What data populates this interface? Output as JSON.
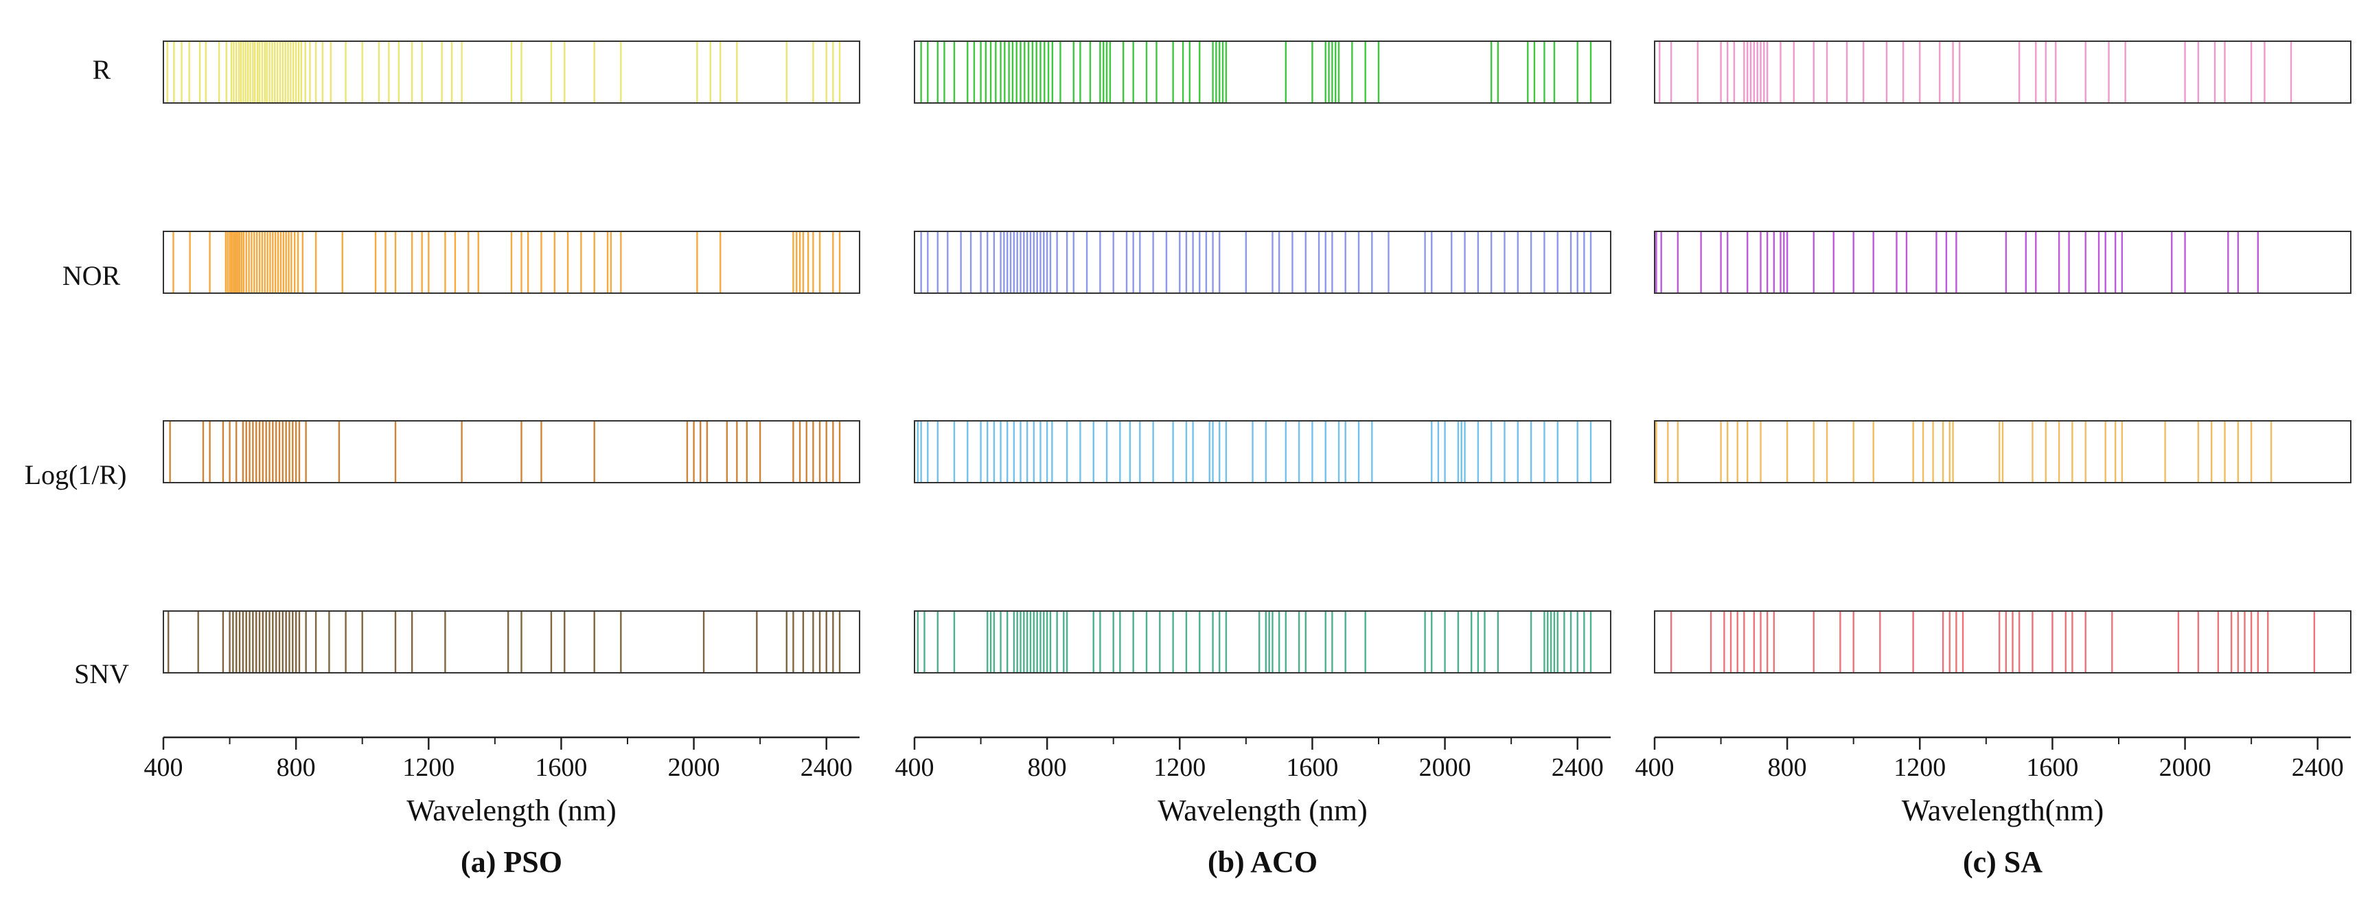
{
  "chart_data": {
    "type": "strip",
    "x_label_unit": "nm",
    "xlim": [
      400,
      2500
    ],
    "x_ticks": [
      400,
      800,
      1200,
      1600,
      2000,
      2400
    ],
    "row_labels": [
      "R",
      "NOR",
      "Log(1/R)",
      "SNV"
    ],
    "panels": [
      {
        "caption": "(a) PSO",
        "xlabel": "Wavelength (nm)",
        "rows": [
          {
            "label": "R",
            "color": "#e8e05a",
            "lines": [
              412,
              432,
              455,
              478,
              510,
              528,
              568,
              590,
              605,
              612,
              620,
              628,
              634,
              641,
              648,
              655,
              662,
              670,
              676,
              684,
              690,
              698,
              706,
              712,
              720,
              728,
              736,
              744,
              752,
              760,
              768,
              776,
              784,
              792,
              800,
              808,
              816,
              828,
              842,
              860,
              880,
              905,
              950,
              1000,
              1050,
              1080,
              1110,
              1150,
              1180,
              1240,
              1270,
              1300,
              1450,
              1480,
              1570,
              1610,
              1700,
              1780,
              2010,
              2050,
              2080,
              2130,
              2280,
              2360,
              2400,
              2420,
              2440
            ]
          },
          {
            "label": "NOR",
            "color": "#f59a1d",
            "lines": [
              430,
              480,
              540,
              588,
              594,
              600,
              605,
              610,
              615,
              620,
              625,
              630,
              636,
              642,
              650,
              658,
              666,
              674,
              682,
              690,
              698,
              706,
              714,
              722,
              730,
              738,
              746,
              754,
              762,
              770,
              778,
              786,
              796,
              806,
              820,
              860,
              940,
              1040,
              1070,
              1100,
              1150,
              1180,
              1200,
              1250,
              1280,
              1320,
              1350,
              1450,
              1480,
              1500,
              1540,
              1580,
              1620,
              1660,
              1700,
              1740,
              1750,
              1780,
              2010,
              2080,
              2300,
              2310,
              2320,
              2330,
              2345,
              2360,
              2380,
              2420,
              2440
            ]
          },
          {
            "label": "Log(1/R)",
            "color": "#c96f14",
            "lines": [
              420,
              520,
              540,
              580,
              600,
              620,
              640,
              650,
              660,
              670,
              680,
              690,
              700,
              710,
              720,
              730,
              740,
              750,
              760,
              770,
              780,
              790,
              800,
              810,
              830,
              930,
              1100,
              1300,
              1480,
              1540,
              1700,
              1980,
              2000,
              2020,
              2040,
              2100,
              2130,
              2160,
              2200,
              2300,
              2320,
              2340,
              2360,
              2380,
              2400,
              2420,
              2440
            ]
          },
          {
            "label": "SNV",
            "color": "#6b4a1c",
            "lines": [
              415,
              505,
              580,
              600,
              610,
              620,
              630,
              640,
              650,
              660,
              670,
              680,
              690,
              700,
              710,
              720,
              730,
              740,
              750,
              760,
              770,
              780,
              790,
              800,
              810,
              830,
              860,
              900,
              950,
              1000,
              1100,
              1150,
              1250,
              1440,
              1480,
              1570,
              1610,
              1700,
              1780,
              2030,
              2190,
              2280,
              2300,
              2330,
              2360,
              2380,
              2400,
              2420,
              2440
            ]
          }
        ]
      },
      {
        "caption": "(b) ACO",
        "xlabel": "Wavelength (nm)",
        "rows": [
          {
            "label": "R",
            "color": "#1fbd1f",
            "lines": [
              420,
              440,
              470,
              490,
              520,
              560,
              580,
              600,
              615,
              630,
              645,
              660,
              672,
              685,
              696,
              708,
              720,
              732,
              744,
              756,
              768,
              780,
              792,
              804,
              816,
              840,
              880,
              900,
              930,
              960,
              970,
              980,
              990,
              1030,
              1060,
              1100,
              1130,
              1180,
              1210,
              1230,
              1260,
              1300,
              1310,
              1320,
              1330,
              1340,
              1520,
              1600,
              1640,
              1650,
              1660,
              1670,
              1680,
              1720,
              1760,
              1800,
              2140,
              2160,
              2250,
              2270,
              2300,
              2330,
              2400,
              2440
            ]
          },
          {
            "label": "NOR",
            "color": "#7a86e8",
            "lines": [
              420,
              440,
              470,
              500,
              540,
              570,
              600,
              620,
              640,
              660,
              670,
              680,
              690,
              700,
              710,
              720,
              730,
              740,
              750,
              760,
              770,
              780,
              790,
              800,
              810,
              830,
              860,
              880,
              920,
              960,
              1000,
              1040,
              1060,
              1080,
              1120,
              1160,
              1200,
              1220,
              1240,
              1260,
              1280,
              1300,
              1320,
              1400,
              1480,
              1500,
              1540,
              1580,
              1620,
              1640,
              1660,
              1700,
              1740,
              1780,
              1830,
              1940,
              1960,
              2020,
              2060,
              2100,
              2140,
              2180,
              2220,
              2260,
              2300,
              2340,
              2380,
              2400,
              2420,
              2440
            ]
          },
          {
            "label": "Log(1/R)",
            "color": "#5ab6ea",
            "lines": [
              410,
              420,
              440,
              470,
              520,
              560,
              600,
              620,
              640,
              660,
              680,
              700,
              720,
              740,
              760,
              780,
              800,
              815,
              860,
              900,
              940,
              980,
              1020,
              1050,
              1080,
              1120,
              1180,
              1220,
              1240,
              1290,
              1300,
              1320,
              1340,
              1420,
              1460,
              1520,
              1560,
              1600,
              1640,
              1680,
              1700,
              1740,
              1780,
              1960,
              1980,
              2000,
              2040,
              2050,
              2060,
              2100,
              2140,
              2180,
              2220,
              2260,
              2300,
              2340,
              2400,
              2440
            ]
          },
          {
            "label": "SNV",
            "color": "#2ea37a",
            "lines": [
              410,
              430,
              470,
              520,
              620,
              630,
              640,
              660,
              680,
              700,
              710,
              720,
              730,
              740,
              750,
              760,
              770,
              780,
              790,
              800,
              810,
              830,
              850,
              860,
              940,
              960,
              1000,
              1020,
              1060,
              1100,
              1140,
              1180,
              1220,
              1260,
              1300,
              1320,
              1340,
              1440,
              1460,
              1470,
              1480,
              1500,
              1520,
              1560,
              1580,
              1640,
              1660,
              1700,
              1760,
              1940,
              1960,
              2000,
              2040,
              2080,
              2100,
              2120,
              2160,
              2260,
              2300,
              2310,
              2320,
              2330,
              2340,
              2360,
              2380,
              2400,
              2420,
              2440
            ]
          }
        ]
      },
      {
        "caption": "(c) SA",
        "xlabel": "Wavelength(nm)",
        "rows": [
          {
            "label": "R",
            "color": "#ef86c4",
            "lines": [
              415,
              450,
              530,
              600,
              620,
              640,
              670,
              680,
              690,
              700,
              710,
              720,
              730,
              740,
              780,
              820,
              880,
              920,
              980,
              1030,
              1100,
              1150,
              1200,
              1260,
              1300,
              1320,
              1500,
              1550,
              1580,
              1610,
              1700,
              1770,
              1820,
              2000,
              2040,
              2090,
              2120,
              2200,
              2240,
              2320
            ]
          },
          {
            "label": "NOR",
            "color": "#b43cd6",
            "lines": [
              405,
              420,
              470,
              540,
              600,
              620,
              680,
              720,
              740,
              760,
              780,
              790,
              800,
              880,
              940,
              1000,
              1060,
              1130,
              1160,
              1250,
              1280,
              1310,
              1460,
              1520,
              1550,
              1620,
              1650,
              1700,
              1740,
              1760,
              1790,
              1810,
              1960,
              2000,
              2130,
              2160,
              2220
            ]
          },
          {
            "label": "Log(1/R)",
            "color": "#f0b045",
            "lines": [
              405,
              440,
              470,
              600,
              620,
              650,
              680,
              720,
              800,
              880,
              920,
              1000,
              1060,
              1180,
              1210,
              1240,
              1270,
              1290,
              1300,
              1440,
              1450,
              1540,
              1580,
              1620,
              1660,
              1700,
              1760,
              1790,
              1810,
              1940,
              2040,
              2080,
              2120,
              2160,
              2200,
              2260
            ]
          },
          {
            "label": "SNV",
            "color": "#e85b62",
            "lines": [
              450,
              570,
              610,
              630,
              650,
              670,
              700,
              720,
              740,
              760,
              880,
              960,
              1000,
              1080,
              1180,
              1270,
              1290,
              1310,
              1330,
              1440,
              1460,
              1480,
              1500,
              1540,
              1600,
              1640,
              1660,
              1700,
              1780,
              1980,
              2040,
              2100,
              2140,
              2160,
              2180,
              2200,
              2220,
              2250,
              2390
            ]
          }
        ]
      }
    ]
  }
}
